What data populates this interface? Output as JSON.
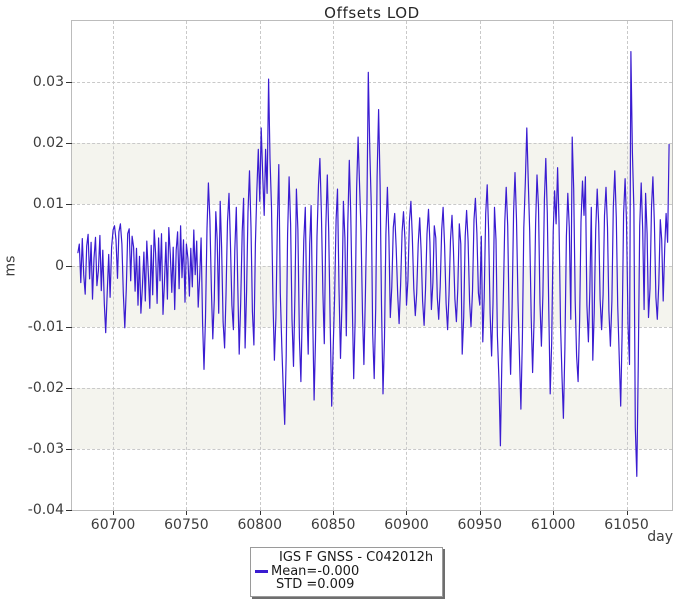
{
  "colors": {
    "line": "#3a1cd1",
    "stripe": "#f4f4ee",
    "grid": "#c9c9c9",
    "frame": "#bcbcbc",
    "tick_text": "#3c3c3c",
    "title_text": "#262626",
    "legend_border": "#9a9a9a",
    "legend_shadow": "#6e6e6e"
  },
  "legend": {
    "lines": [
      "IGS F GNSS - C042012h",
      "Mean=-0.000",
      "STD =0.009"
    ]
  },
  "chart_data": {
    "type": "line",
    "title": "Offsets LOD",
    "xlabel": "day",
    "ylabel": "ms",
    "xlim": [
      60672,
      61081
    ],
    "ylim": [
      -0.04,
      0.04
    ],
    "grid": true,
    "legend_position": "bottom-center",
    "x_ticks": {
      "values": [
        60700,
        60750,
        60800,
        60850,
        60900,
        60950,
        61000,
        61050
      ],
      "labels": [
        "60700",
        "60750",
        "60800",
        "60850",
        "60900",
        "60950",
        "61000",
        "61050"
      ]
    },
    "y_ticks": {
      "values": [
        0.03,
        0.02,
        0.01,
        0,
        -0.01,
        -0.02,
        -0.03,
        -0.04
      ],
      "labels": [
        "0.03",
        "0.02",
        "0.01",
        "0",
        "-0.01",
        "-0.02",
        "-0.03",
        "-0.04"
      ]
    },
    "stripes": [
      [
        0.01,
        0.02
      ],
      [
        -0.01,
        0
      ],
      [
        -0.03,
        -0.02
      ]
    ],
    "series": [
      {
        "name": "IGS F GNSS - C042012h",
        "mean_label": "Mean=-0.000",
        "std_label": "STD =0.009",
        "x_start": 60676,
        "x_step": 1,
        "values": [
          0.0021,
          0.0035,
          -0.0028,
          0.0044,
          -0.0015,
          -0.0047,
          0.0032,
          0.0051,
          -0.0022,
          0.0038,
          -0.0055,
          0.0012,
          0.0046,
          -0.0033,
          -0.0008,
          0.0049,
          -0.0041,
          0.0025,
          -0.0062,
          -0.011,
          -0.0045,
          0.0018,
          -0.0052,
          0.003,
          0.0058,
          0.0065,
          0.0042,
          -0.0021,
          0.0055,
          0.0068,
          0.0035,
          -0.0045,
          -0.0102,
          -0.0038,
          0.0052,
          0.006,
          -0.0025,
          0.0048,
          0.003,
          -0.0042,
          0.0028,
          -0.0065,
          0.0015,
          -0.0078,
          -0.0035,
          0.0022,
          -0.0058,
          0.004,
          -0.0012,
          -0.007,
          0.0033,
          -0.0048,
          0.0058,
          0.002,
          -0.0062,
          0.0045,
          -0.0025,
          0.0052,
          -0.008,
          -0.003,
          0.0038,
          -0.0055,
          0.0062,
          0.0018,
          -0.0044,
          0.003,
          -0.0072,
          0.0025,
          0.0055,
          -0.0038,
          0.0065,
          -0.002,
          0.0042,
          -0.006,
          0.0035,
          0.0012,
          -0.005,
          0.0028,
          -0.0035,
          0.0058,
          -0.0015,
          0.004,
          -0.0068,
          -0.0022,
          0.0045,
          -0.0095,
          -0.017,
          -0.0085,
          0.006,
          0.0135,
          0.0075,
          -0.004,
          -0.012,
          -0.0055,
          0.0088,
          0.0042,
          -0.0078,
          0.0105,
          0.003,
          -0.0092,
          -0.0135,
          -0.0048,
          0.0072,
          0.0118,
          0.0038,
          -0.0065,
          -0.0105,
          0.0025,
          0.0095,
          -0.0035,
          -0.0145,
          -0.006,
          0.0055,
          0.011,
          -0.0135,
          -0.0042,
          0.0088,
          0.0155,
          0.0062,
          -0.0075,
          -0.013,
          0.0035,
          0.012,
          0.019,
          0.0105,
          0.0225,
          0.0148,
          0.0082,
          0.019,
          0.0118,
          0.0305,
          0.0175,
          0.0095,
          -0.006,
          -0.0155,
          -0.0085,
          0.007,
          0.0165,
          -0.0045,
          -0.0132,
          -0.02,
          -0.026,
          -0.0148,
          0.0052,
          0.0145,
          0.0068,
          -0.0088,
          -0.0165,
          -0.0042,
          0.0125,
          0.0058,
          -0.0118,
          -0.019,
          -0.0072,
          0.0042,
          0.0095,
          -0.0058,
          -0.0145,
          0.0035,
          0.0098,
          -0.0075,
          -0.022,
          -0.0122,
          0.0048,
          0.0132,
          0.0175,
          0.0085,
          -0.0045,
          -0.0128,
          0.0062,
          0.0148,
          0.0055,
          -0.0095,
          -0.023,
          -0.014,
          -0.0052,
          0.0075,
          0.0125,
          -0.0038,
          -0.0152,
          -0.0065,
          0.0105,
          0.0045,
          -0.0115,
          0.0068,
          0.0172,
          0.0088,
          -0.0055,
          -0.0185,
          -0.0092,
          0.0125,
          0.021,
          0.0135,
          0.0058,
          -0.0078,
          -0.0162,
          -0.0048,
          0.0092,
          0.0316,
          0.0188,
          0.0096,
          -0.0112,
          -0.0185,
          -0.007,
          0.0145,
          0.0255,
          0.0132,
          -0.0065,
          -0.021,
          -0.0118,
          0.0052,
          0.0128,
          0.0046,
          -0.0085,
          -0.0035,
          0.0062,
          0.0085,
          0.0028,
          -0.0048,
          -0.0095,
          -0.0032,
          0.0055,
          0.0088,
          0.0042,
          -0.0065,
          -0.0025,
          0.0072,
          0.0105,
          0.0048,
          -0.0038,
          -0.0082,
          -0.0045,
          0.0035,
          0.0078,
          0.0025,
          -0.0058,
          -0.0098,
          -0.004,
          0.0052,
          0.0092,
          0.0038,
          -0.0072,
          -0.0028,
          0.0065,
          0.0045,
          -0.0052,
          -0.0088,
          -0.0035,
          0.0058,
          0.0095,
          0.0032,
          -0.0062,
          -0.0105,
          -0.0048,
          0.0042,
          0.0082,
          0.0028,
          -0.0055,
          -0.0092,
          -0.0038,
          0.0068,
          0.0035,
          -0.0145,
          -0.0085,
          0.0048,
          0.009,
          0.004,
          -0.006,
          -0.01,
          -0.0042,
          0.0075,
          0.011,
          0.0052,
          -0.0045,
          -0.0065,
          0.0048,
          -0.0125,
          -0.0052,
          0.0085,
          0.0132,
          0.0058,
          -0.0078,
          -0.0148,
          -0.0062,
          0.0095,
          0.0042,
          -0.0115,
          -0.0185,
          -0.0295,
          -0.0162,
          -0.0055,
          0.0072,
          0.0128,
          0.0065,
          -0.0095,
          -0.0178,
          -0.0068,
          0.0088,
          0.0152,
          0.0075,
          -0.0058,
          -0.0145,
          -0.0235,
          -0.0118,
          0.0062,
          0.0135,
          0.0225,
          0.0142,
          0.0055,
          -0.0085,
          -0.0175,
          -0.0088,
          0.0068,
          0.0148,
          0.0095,
          -0.0062,
          -0.0132,
          -0.0048,
          0.0108,
          0.0175,
          0.0085,
          -0.0075,
          -0.021,
          -0.0125,
          0.0055,
          0.0122,
          0.0068,
          0.016,
          0.0072,
          -0.0095,
          -0.0182,
          -0.025,
          -0.0135,
          0.0048,
          0.0118,
          0.0062,
          -0.0088,
          0.021,
          0.0125,
          -0.0058,
          -0.0148,
          -0.019,
          -0.0092,
          0.0072,
          0.0138,
          0.0082,
          0.0145,
          -0.0065,
          -0.0125,
          -0.0042,
          0.0095,
          -0.0155,
          -0.0078,
          0.0058,
          0.0125,
          0.0068,
          -0.0055,
          -0.0105,
          -0.0048,
          0.0082,
          0.0128,
          0.0062,
          -0.0075,
          -0.0132,
          -0.0058,
          0.0095,
          0.0155,
          0.0078,
          -0.0065,
          -0.0148,
          -0.023,
          -0.0112,
          0.0085,
          0.0142,
          0.0072,
          -0.0095,
          -0.0162,
          0.035,
          0.0185,
          0.0092,
          -0.0265,
          -0.0345,
          -0.0158,
          0.0065,
          0.0135,
          0.0058,
          -0.0072,
          0.0118,
          0.0052,
          -0.0085,
          -0.0038,
          0.0095,
          0.0145,
          0.0068,
          -0.0052,
          -0.0088,
          -0.003,
          0.0075,
          0.0042,
          -0.0058,
          0.0028,
          0.0085,
          0.0038,
          0.0198
        ]
      }
    ]
  }
}
